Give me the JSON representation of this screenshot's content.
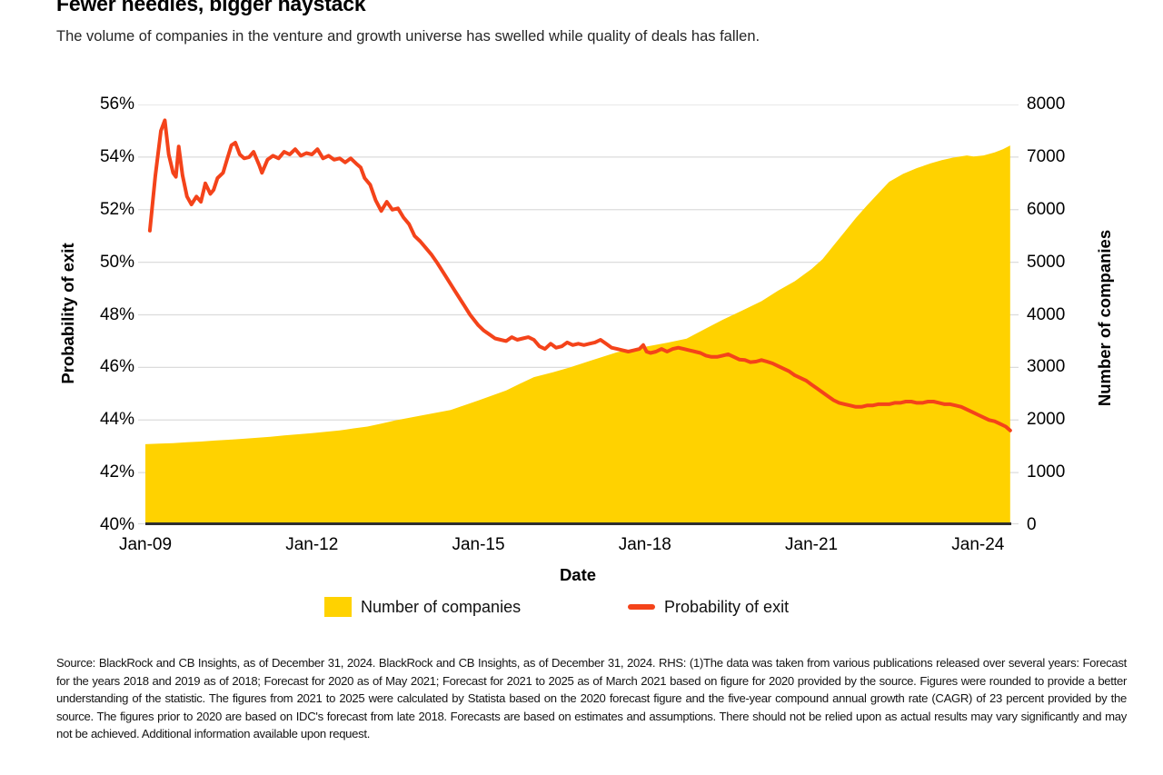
{
  "chart_data": {
    "type": "area+line",
    "title": "Fewer needles, bigger haystack",
    "subtitle": "The volume of companies in the venture and growth universe has swelled while quality of deals has fallen.",
    "x_axis": {
      "label": "Date",
      "domain": [
        2009.0,
        2024.6
      ],
      "ticks": [
        2009,
        2012,
        2015,
        2018,
        2021,
        2024
      ],
      "tick_labels": [
        "Jan-09",
        "Jan-12",
        "Jan-15",
        "Jan-18",
        "Jan-21",
        "Jan-24"
      ]
    },
    "left_axis": {
      "label": "Probability of exit",
      "range": [
        40,
        56
      ],
      "ticks": [
        40,
        42,
        44,
        46,
        48,
        50,
        52,
        54,
        56
      ],
      "tick_suffix": "%"
    },
    "right_axis": {
      "label": "Number of companies",
      "range": [
        0,
        8000
      ],
      "ticks": [
        0,
        1000,
        2000,
        3000,
        4000,
        5000,
        6000,
        7000,
        8000
      ]
    },
    "grid": "horizontal",
    "colors": {
      "area": "#FFD200",
      "line": "#F4431A",
      "grid": "#DCDCDC",
      "axis": "#2E2E2E"
    },
    "legend": [
      {
        "label": "Number of companies",
        "swatch": "area"
      },
      {
        "label": "Probability of exit",
        "swatch": "line"
      }
    ],
    "series": [
      {
        "name": "Number of companies",
        "type": "area",
        "axis": "right",
        "points": [
          [
            2009.0,
            1540
          ],
          [
            2009.25,
            1550
          ],
          [
            2009.5,
            1560
          ],
          [
            2009.75,
            1575
          ],
          [
            2010.0,
            1590
          ],
          [
            2010.25,
            1608
          ],
          [
            2010.5,
            1625
          ],
          [
            2010.75,
            1642
          ],
          [
            2011.0,
            1660
          ],
          [
            2011.25,
            1682
          ],
          [
            2011.5,
            1705
          ],
          [
            2011.75,
            1727
          ],
          [
            2012.0,
            1750
          ],
          [
            2012.25,
            1775
          ],
          [
            2012.5,
            1800
          ],
          [
            2012.75,
            1840
          ],
          [
            2013.0,
            1875
          ],
          [
            2013.25,
            1930
          ],
          [
            2013.5,
            1990
          ],
          [
            2013.75,
            2040
          ],
          [
            2014.0,
            2090
          ],
          [
            2014.25,
            2140
          ],
          [
            2014.5,
            2190
          ],
          [
            2014.75,
            2280
          ],
          [
            2015.0,
            2370
          ],
          [
            2015.25,
            2465
          ],
          [
            2015.5,
            2560
          ],
          [
            2015.75,
            2690
          ],
          [
            2016.0,
            2815
          ],
          [
            2016.35,
            2910
          ],
          [
            2016.65,
            3000
          ],
          [
            2017.0,
            3120
          ],
          [
            2017.5,
            3290
          ],
          [
            2018.0,
            3390
          ],
          [
            2018.4,
            3470
          ],
          [
            2018.75,
            3545
          ],
          [
            2019.1,
            3740
          ],
          [
            2019.4,
            3905
          ],
          [
            2019.75,
            4080
          ],
          [
            2020.1,
            4260
          ],
          [
            2020.4,
            4460
          ],
          [
            2020.7,
            4640
          ],
          [
            2021.0,
            4870
          ],
          [
            2021.2,
            5060
          ],
          [
            2021.4,
            5320
          ],
          [
            2021.6,
            5580
          ],
          [
            2021.8,
            5840
          ],
          [
            2022.0,
            6080
          ],
          [
            2022.25,
            6360
          ],
          [
            2022.4,
            6530
          ],
          [
            2022.65,
            6680
          ],
          [
            2022.9,
            6790
          ],
          [
            2023.15,
            6880
          ],
          [
            2023.35,
            6940
          ],
          [
            2023.55,
            6990
          ],
          [
            2023.8,
            7030
          ],
          [
            2023.92,
            7010
          ],
          [
            2024.1,
            7030
          ],
          [
            2024.3,
            7090
          ],
          [
            2024.45,
            7150
          ],
          [
            2024.58,
            7220
          ]
        ]
      },
      {
        "name": "Probability of exit",
        "type": "line",
        "axis": "left",
        "points": [
          [
            2009.08,
            51.2
          ],
          [
            2009.18,
            53.3
          ],
          [
            2009.28,
            55.0
          ],
          [
            2009.35,
            55.4
          ],
          [
            2009.42,
            54.1
          ],
          [
            2009.5,
            53.4
          ],
          [
            2009.55,
            53.25
          ],
          [
            2009.6,
            54.4
          ],
          [
            2009.67,
            53.3
          ],
          [
            2009.75,
            52.5
          ],
          [
            2009.83,
            52.2
          ],
          [
            2009.92,
            52.5
          ],
          [
            2010.0,
            52.3
          ],
          [
            2010.08,
            53.0
          ],
          [
            2010.17,
            52.6
          ],
          [
            2010.23,
            52.75
          ],
          [
            2010.3,
            53.2
          ],
          [
            2010.4,
            53.4
          ],
          [
            2010.47,
            53.9
          ],
          [
            2010.55,
            54.45
          ],
          [
            2010.62,
            54.55
          ],
          [
            2010.7,
            54.1
          ],
          [
            2010.78,
            53.95
          ],
          [
            2010.87,
            54.0
          ],
          [
            2010.95,
            54.2
          ],
          [
            2011.05,
            53.7
          ],
          [
            2011.1,
            53.4
          ],
          [
            2011.2,
            53.9
          ],
          [
            2011.3,
            54.05
          ],
          [
            2011.4,
            53.95
          ],
          [
            2011.5,
            54.2
          ],
          [
            2011.6,
            54.1
          ],
          [
            2011.7,
            54.3
          ],
          [
            2011.8,
            54.05
          ],
          [
            2011.9,
            54.15
          ],
          [
            2012.0,
            54.1
          ],
          [
            2012.1,
            54.3
          ],
          [
            2012.2,
            53.95
          ],
          [
            2012.3,
            54.05
          ],
          [
            2012.4,
            53.9
          ],
          [
            2012.5,
            53.95
          ],
          [
            2012.6,
            53.8
          ],
          [
            2012.7,
            53.95
          ],
          [
            2012.8,
            53.75
          ],
          [
            2012.88,
            53.6
          ],
          [
            2012.95,
            53.2
          ],
          [
            2013.05,
            52.95
          ],
          [
            2013.15,
            52.35
          ],
          [
            2013.25,
            51.95
          ],
          [
            2013.35,
            52.3
          ],
          [
            2013.45,
            52.0
          ],
          [
            2013.55,
            52.05
          ],
          [
            2013.65,
            51.7
          ],
          [
            2013.75,
            51.45
          ],
          [
            2013.85,
            51.0
          ],
          [
            2013.95,
            50.8
          ],
          [
            2014.05,
            50.55
          ],
          [
            2014.15,
            50.3
          ],
          [
            2014.25,
            50.0
          ],
          [
            2014.4,
            49.5
          ],
          [
            2014.55,
            49.0
          ],
          [
            2014.7,
            48.5
          ],
          [
            2014.85,
            48.0
          ],
          [
            2015.0,
            47.6
          ],
          [
            2015.1,
            47.4
          ],
          [
            2015.2,
            47.25
          ],
          [
            2015.3,
            47.1
          ],
          [
            2015.4,
            47.05
          ],
          [
            2015.5,
            47.0
          ],
          [
            2015.6,
            47.15
          ],
          [
            2015.7,
            47.05
          ],
          [
            2015.8,
            47.1
          ],
          [
            2015.9,
            47.15
          ],
          [
            2016.0,
            47.05
          ],
          [
            2016.1,
            46.8
          ],
          [
            2016.2,
            46.7
          ],
          [
            2016.3,
            46.9
          ],
          [
            2016.4,
            46.75
          ],
          [
            2016.5,
            46.8
          ],
          [
            2016.6,
            46.95
          ],
          [
            2016.7,
            46.85
          ],
          [
            2016.8,
            46.9
          ],
          [
            2016.9,
            46.85
          ],
          [
            2017.0,
            46.9
          ],
          [
            2017.1,
            46.95
          ],
          [
            2017.2,
            47.05
          ],
          [
            2017.3,
            46.9
          ],
          [
            2017.4,
            46.75
          ],
          [
            2017.5,
            46.7
          ],
          [
            2017.6,
            46.65
          ],
          [
            2017.7,
            46.6
          ],
          [
            2017.8,
            46.65
          ],
          [
            2017.9,
            46.7
          ],
          [
            2017.97,
            46.85
          ],
          [
            2018.03,
            46.6
          ],
          [
            2018.1,
            46.55
          ],
          [
            2018.2,
            46.6
          ],
          [
            2018.3,
            46.7
          ],
          [
            2018.4,
            46.6
          ],
          [
            2018.5,
            46.7
          ],
          [
            2018.6,
            46.75
          ],
          [
            2018.7,
            46.7
          ],
          [
            2018.8,
            46.65
          ],
          [
            2018.9,
            46.6
          ],
          [
            2019.0,
            46.55
          ],
          [
            2019.1,
            46.45
          ],
          [
            2019.2,
            46.4
          ],
          [
            2019.3,
            46.4
          ],
          [
            2019.4,
            46.45
          ],
          [
            2019.5,
            46.5
          ],
          [
            2019.6,
            46.4
          ],
          [
            2019.7,
            46.3
          ],
          [
            2019.8,
            46.28
          ],
          [
            2019.9,
            46.2
          ],
          [
            2020.0,
            46.22
          ],
          [
            2020.1,
            46.28
          ],
          [
            2020.2,
            46.22
          ],
          [
            2020.3,
            46.15
          ],
          [
            2020.4,
            46.05
          ],
          [
            2020.5,
            45.95
          ],
          [
            2020.6,
            45.85
          ],
          [
            2020.7,
            45.7
          ],
          [
            2020.8,
            45.6
          ],
          [
            2020.9,
            45.5
          ],
          [
            2021.0,
            45.35
          ],
          [
            2021.1,
            45.2
          ],
          [
            2021.2,
            45.05
          ],
          [
            2021.3,
            44.9
          ],
          [
            2021.4,
            44.75
          ],
          [
            2021.5,
            44.65
          ],
          [
            2021.6,
            44.6
          ],
          [
            2021.7,
            44.55
          ],
          [
            2021.8,
            44.5
          ],
          [
            2021.9,
            44.5
          ],
          [
            2022.0,
            44.55
          ],
          [
            2022.1,
            44.55
          ],
          [
            2022.2,
            44.6
          ],
          [
            2022.3,
            44.6
          ],
          [
            2022.4,
            44.6
          ],
          [
            2022.5,
            44.65
          ],
          [
            2022.6,
            44.65
          ],
          [
            2022.7,
            44.7
          ],
          [
            2022.8,
            44.7
          ],
          [
            2022.9,
            44.65
          ],
          [
            2023.0,
            44.65
          ],
          [
            2023.1,
            44.7
          ],
          [
            2023.2,
            44.7
          ],
          [
            2023.3,
            44.65
          ],
          [
            2023.4,
            44.6
          ],
          [
            2023.5,
            44.6
          ],
          [
            2023.6,
            44.55
          ],
          [
            2023.7,
            44.5
          ],
          [
            2023.8,
            44.4
          ],
          [
            2023.9,
            44.3
          ],
          [
            2024.0,
            44.2
          ],
          [
            2024.1,
            44.1
          ],
          [
            2024.2,
            44.0
          ],
          [
            2024.3,
            43.95
          ],
          [
            2024.4,
            43.85
          ],
          [
            2024.5,
            43.75
          ],
          [
            2024.58,
            43.6
          ]
        ]
      }
    ]
  },
  "footnote": "Source: BlackRock and CB Insights, as of December 31, 2024. BlackRock and CB Insights, as of December 31, 2024. RHS: (1)The data was taken from various publications released over several years: Forecast for the years 2018 and 2019 as of 2018; Forecast for 2020 as of May 2021; Forecast for 2021 to 2025 as of March 2021 based on figure for 2020 provided by the source. Figures were rounded to provide a better understanding of the statistic. The figures from 2021 to 2025 were calculated by Statista based on the 2020 forecast figure and the five-year compound annual growth rate (CAGR) of 23 percent provided by the source. The figures prior to 2020 are based on IDC's forecast from late 2018. Forecasts are based on estimates and assumptions. There should not be relied upon as actual results may vary significantly and may not be achieved. Additional information available upon request."
}
